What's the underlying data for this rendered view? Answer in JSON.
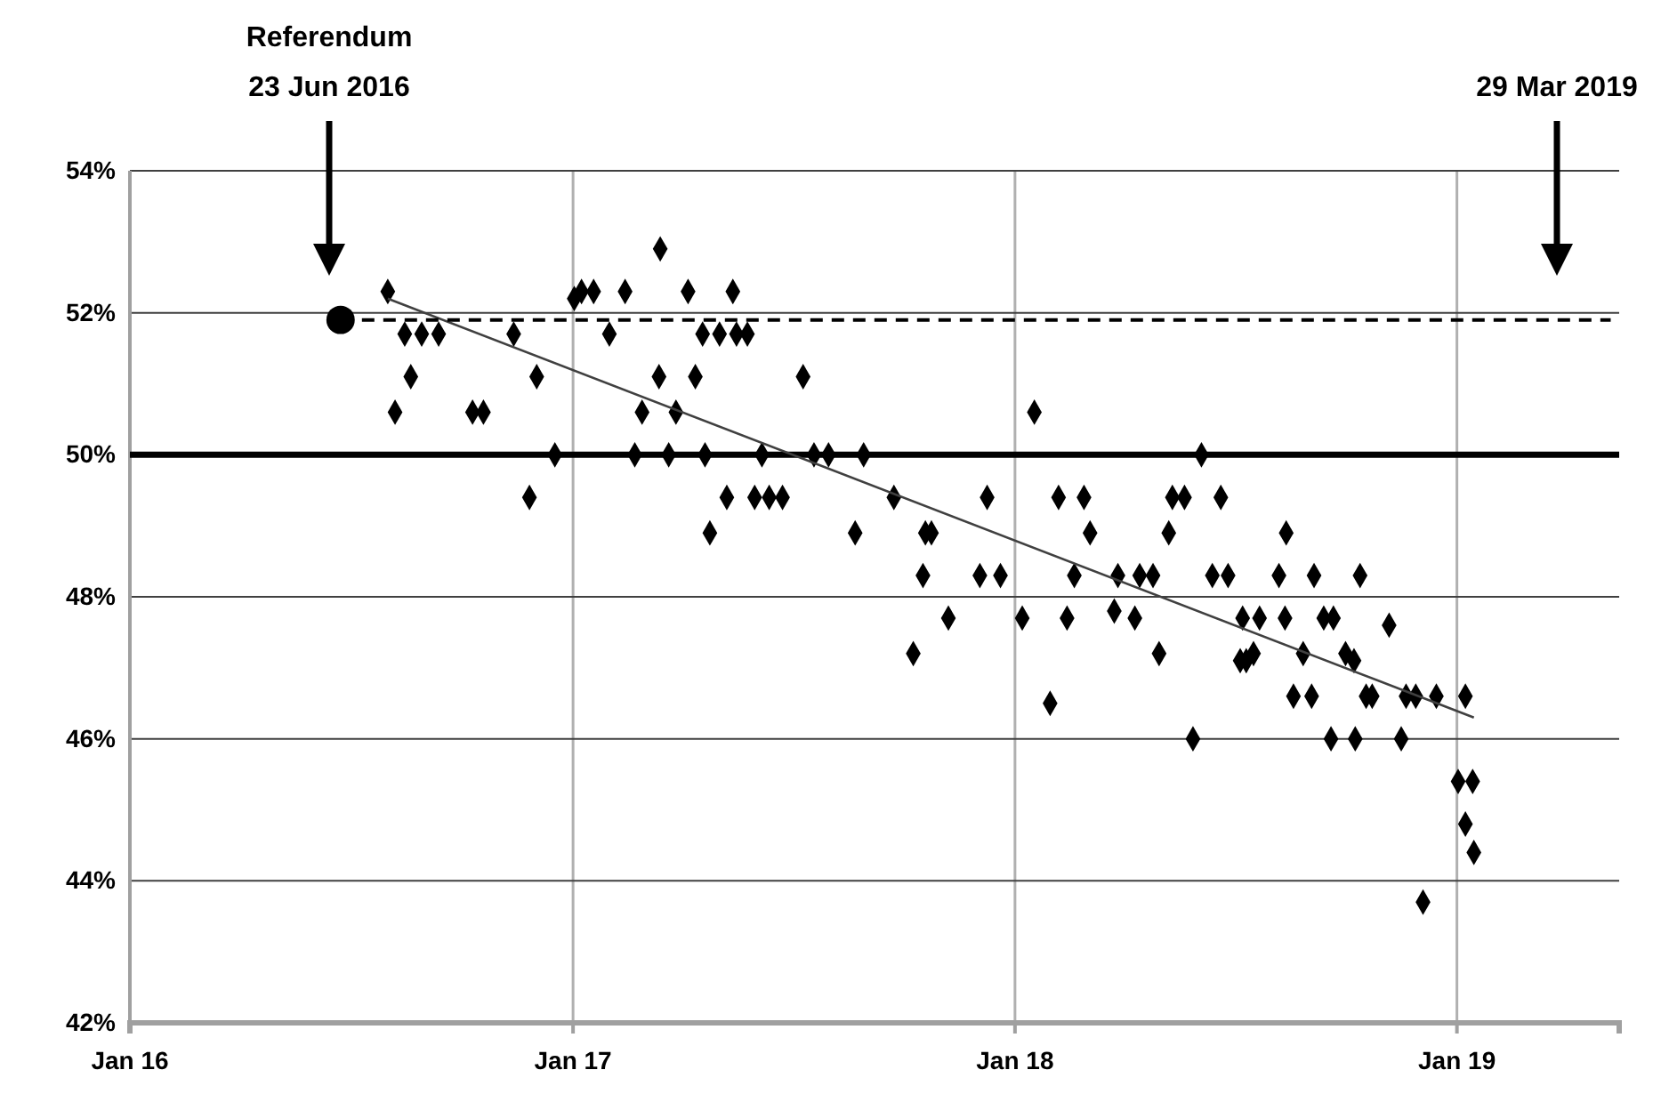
{
  "chart_data": {
    "type": "scatter",
    "xlim": [
      "2016-01-01",
      "2019-05-15"
    ],
    "xticks": [
      {
        "value": "2016-01-01",
        "label": "Jan 16"
      },
      {
        "value": "2017-01-01",
        "label": "Jan 17"
      },
      {
        "value": "2018-01-01",
        "label": "Jan 18"
      },
      {
        "value": "2019-01-01",
        "label": "Jan 19"
      }
    ],
    "ylim": [
      42,
      54
    ],
    "yticks": [
      {
        "value": 42,
        "label": "42%"
      },
      {
        "value": 44,
        "label": "44%"
      },
      {
        "value": 46,
        "label": "46%"
      },
      {
        "value": 48,
        "label": "48%"
      },
      {
        "value": 50,
        "label": "50%"
      },
      {
        "value": 52,
        "label": "52%"
      },
      {
        "value": 54,
        "label": "54%"
      }
    ],
    "grid": true,
    "ref_lines": [
      {
        "axis": "y",
        "value": 50,
        "color": "#000000"
      }
    ],
    "annotations": [
      "Referendum\n23 Jun 2016",
      "29 Mar 2019"
    ],
    "series": [
      {
        "marker": "diamond",
        "color": "#000000",
        "x": [
          "2016-08-01",
          "2016-08-15",
          "2016-08-07",
          "2016-08-20",
          "2016-08-29",
          "2016-09-12",
          "2016-10-10",
          "2016-10-19",
          "2016-11-13",
          "2016-12-02",
          "2016-11-26",
          "2016-12-17",
          "2017-01-02",
          "2017-01-08",
          "2017-01-18",
          "2017-01-31",
          "2017-02-13",
          "2017-02-21",
          "2017-02-27",
          "2017-03-13",
          "2017-03-14",
          "2017-03-21",
          "2017-03-27",
          "2017-04-06",
          "2017-04-12",
          "2017-04-18",
          "2017-04-20",
          "2017-04-24",
          "2017-05-02",
          "2017-05-08",
          "2017-05-13",
          "2017-05-16",
          "2017-05-25",
          "2017-05-31",
          "2017-06-06",
          "2017-06-12",
          "2017-06-23",
          "2017-07-10",
          "2017-07-19",
          "2017-07-31",
          "2017-08-29",
          "2017-08-22",
          "2017-09-23",
          "2017-10-09",
          "2017-10-17",
          "2017-10-19",
          "2017-10-24",
          "2017-11-07",
          "2017-12-03",
          "2017-12-09",
          "2017-12-20",
          "2018-01-07",
          "2018-01-17",
          "2018-01-30",
          "2018-02-06",
          "2018-02-13",
          "2018-02-19",
          "2018-02-27",
          "2018-03-04",
          "2018-03-24",
          "2018-03-27",
          "2018-04-10",
          "2018-04-14",
          "2018-04-25",
          "2018-04-30",
          "2018-05-08",
          "2018-05-11",
          "2018-05-21",
          "2018-06-04",
          "2018-05-28",
          "2018-06-20",
          "2018-06-13",
          "2018-06-26",
          "2018-07-06",
          "2018-07-11",
          "2018-07-17",
          "2018-07-08",
          "2018-07-22",
          "2018-08-07",
          "2018-08-12",
          "2018-08-13",
          "2018-08-19",
          "2018-08-27",
          "2018-09-03",
          "2018-09-05",
          "2018-09-13",
          "2018-09-21",
          "2018-09-19",
          "2018-10-01",
          "2018-10-09",
          "2018-10-08",
          "2018-10-13",
          "2018-10-18",
          "2018-10-23",
          "2018-11-06",
          "2018-11-16",
          "2018-11-20",
          "2018-11-28",
          "2018-12-04",
          "2018-12-15",
          "2019-01-08",
          "2019-01-02",
          "2019-01-14",
          "2019-01-08",
          "2019-01-15"
        ],
        "values": [
          52.3,
          51.7,
          50.6,
          51.1,
          51.7,
          51.7,
          50.6,
          50.6,
          51.7,
          51.1,
          49.4,
          50.0,
          52.2,
          52.3,
          52.3,
          51.7,
          52.3,
          50.0,
          50.6,
          51.1,
          52.9,
          50.0,
          50.6,
          52.3,
          51.1,
          51.7,
          50.0,
          48.9,
          51.7,
          49.4,
          52.3,
          51.7,
          51.7,
          49.4,
          50.0,
          49.4,
          49.4,
          51.1,
          50.0,
          50.0,
          50.0,
          48.9,
          49.4,
          47.2,
          48.3,
          48.9,
          48.9,
          47.7,
          48.3,
          49.4,
          48.3,
          47.7,
          50.6,
          46.5,
          49.4,
          47.7,
          48.3,
          49.4,
          48.9,
          47.8,
          48.3,
          47.7,
          48.3,
          48.3,
          47.2,
          48.9,
          49.4,
          49.4,
          50.0,
          46.0,
          49.4,
          48.3,
          48.3,
          47.1,
          47.1,
          47.2,
          47.7,
          47.7,
          48.3,
          47.7,
          48.9,
          46.6,
          47.2,
          46.6,
          48.3,
          47.7,
          47.7,
          46.0,
          47.2,
          46.0,
          47.1,
          48.3,
          46.6,
          46.6,
          47.6,
          46.0,
          46.6,
          46.6,
          43.7,
          46.6,
          46.6,
          45.4,
          45.4,
          44.8,
          44.4
        ]
      },
      {
        "type": "line",
        "color": "#404040",
        "line_style": "solid",
        "x": [
          "2016-08-01",
          "2019-01-15"
        ],
        "values": [
          52.2,
          46.3
        ]
      },
      {
        "type": "line",
        "color": "#000000",
        "line_style": "dashed",
        "x": [
          "2016-06-23",
          "2019-05-08"
        ],
        "values": [
          51.9,
          51.9
        ]
      },
      {
        "type": "scatter",
        "marker": "circle",
        "color": "#000000",
        "x": [
          "2016-06-23"
        ],
        "values": [
          51.9
        ]
      }
    ]
  }
}
